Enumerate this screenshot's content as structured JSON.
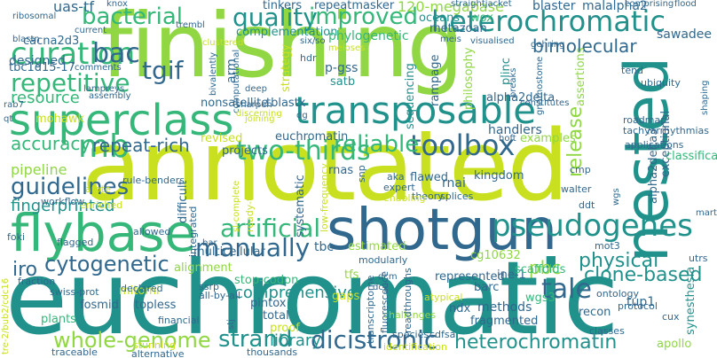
{
  "palette": {
    "yellow": "#c8e020",
    "lime": "#90d743",
    "green": "#35b779",
    "teal": "#21918c",
    "blue": "#31688e",
    "indigo": "#443983",
    "purple": "#440154"
  },
  "words": [
    {
      "text": "euchromatic",
      "color": "#21918c"
    },
    {
      "text": "annotated",
      "color": "#c8e020"
    },
    {
      "text": "finishing",
      "color": "#90d743"
    },
    {
      "text": "superclass",
      "color": "#35b779"
    },
    {
      "text": "shotgun",
      "color": "#31688e"
    },
    {
      "text": "flybase",
      "color": "#35b779"
    },
    {
      "text": "nested",
      "color": "#21918c"
    },
    {
      "text": "transposable",
      "color": "#21918c"
    },
    {
      "text": "heterochromatic",
      "color": "#21918c"
    },
    {
      "text": "pseudogenes",
      "color": "#21918c"
    },
    {
      "text": "curation",
      "color": "#35b779"
    },
    {
      "text": "toolbox",
      "color": "#31688e"
    },
    {
      "text": "artificial",
      "color": "#35b779"
    },
    {
      "text": "two-thirds",
      "color": "#35b779"
    },
    {
      "text": "guidelines",
      "color": "#31688e"
    },
    {
      "text": "repetitive",
      "color": "#35b779"
    },
    {
      "text": "bacterial",
      "color": "#35b779"
    },
    {
      "text": "quality",
      "color": "#21918c"
    },
    {
      "text": "improved",
      "color": "#35b779"
    },
    {
      "text": "bac",
      "color": "#31688e"
    },
    {
      "text": "mb",
      "color": "#35b779"
    },
    {
      "text": "tgif",
      "color": "#31688e"
    },
    {
      "text": "reliable",
      "color": "#35b779"
    },
    {
      "text": "manually",
      "color": "#31688e"
    },
    {
      "text": "cytogenetic",
      "color": "#31688e"
    },
    {
      "text": "tale",
      "color": "#31688e"
    },
    {
      "text": "dicistronic",
      "color": "#31688e"
    },
    {
      "text": "heterochromatin",
      "color": "#21918c"
    },
    {
      "text": "strand",
      "color": "#21918c"
    },
    {
      "text": "whole-genome",
      "color": "#90d743"
    },
    {
      "text": "physical",
      "color": "#21918c"
    },
    {
      "text": "clone-based",
      "color": "#21918c"
    },
    {
      "text": "bimolecular",
      "color": "#31688e"
    },
    {
      "text": "repeat-rich",
      "color": "#31688e"
    },
    {
      "text": "accuracy",
      "color": "#35b779"
    },
    {
      "text": "fingerprinted",
      "color": "#21918c"
    },
    {
      "text": "comprehensive",
      "color": "#21918c"
    },
    {
      "text": "library",
      "color": "#21918c"
    },
    {
      "text": "iro",
      "color": "#31688e"
    },
    {
      "text": "pbc",
      "color": "#90d743"
    },
    {
      "text": "release",
      "color": "#90d743"
    },
    {
      "text": "resource",
      "color": "#35b779"
    },
    {
      "text": "pipeline",
      "color": "#90d743"
    },
    {
      "text": "120-megabase",
      "color": "#90d743"
    },
    {
      "text": "uas-tf",
      "color": "#31688e"
    },
    {
      "text": "oceans",
      "color": "#21918c"
    },
    {
      "text": "wox",
      "color": "#35b779"
    },
    {
      "text": "blaster",
      "color": "#31688e"
    },
    {
      "text": "malalpha2",
      "color": "#31688e"
    },
    {
      "text": "repeatmasker",
      "color": "#31688e"
    },
    {
      "text": "tinkers",
      "color": "#31688e"
    },
    {
      "text": "complementation",
      "color": "#21918c"
    },
    {
      "text": "phylogenetic",
      "color": "#35b779"
    },
    {
      "text": "metazoan",
      "color": "#31688e"
    },
    {
      "text": "designed",
      "color": "#31688e"
    },
    {
      "text": "cacna2d3",
      "color": "#31688e"
    },
    {
      "text": "tbc1d15-17",
      "color": "#31688e"
    },
    {
      "text": "alpha2delta",
      "color": "#31688e"
    },
    {
      "text": "p-gss",
      "color": "#31688e"
    },
    {
      "text": "satb",
      "color": "#21918c"
    },
    {
      "text": "euchromatin",
      "color": "#31688e"
    },
    {
      "text": "handlers",
      "color": "#31688e"
    },
    {
      "text": "nonsatellite",
      "color": "#31688e"
    },
    {
      "text": "tblastx",
      "color": "#31688e"
    },
    {
      "text": "mohawk",
      "color": "#c8e020"
    },
    {
      "text": "revised",
      "color": "#c8e020"
    },
    {
      "text": "projects",
      "color": "#31688e"
    },
    {
      "text": "rnas",
      "color": "#31688e"
    },
    {
      "text": "rnai",
      "color": "#31688e"
    },
    {
      "text": "flawed",
      "color": "#31688e"
    },
    {
      "text": "kingdom",
      "color": "#31688e"
    },
    {
      "text": "tbc",
      "color": "#31688e"
    },
    {
      "text": "estimated",
      "color": "#90d743"
    },
    {
      "text": "multicellular",
      "color": "#31688e"
    },
    {
      "text": "cg10632",
      "color": "#90d743"
    },
    {
      "text": "alignment",
      "color": "#90d743"
    },
    {
      "text": "tfs",
      "color": "#90d743"
    },
    {
      "text": "represented",
      "color": "#31688e"
    },
    {
      "text": "ine-1",
      "color": "#31688e"
    },
    {
      "text": "scaffolds",
      "color": "#35b779"
    },
    {
      "text": "barc",
      "color": "#31688e"
    },
    {
      "text": "fosmid",
      "color": "#31688e"
    },
    {
      "text": "mitomi",
      "color": "#c8e020"
    },
    {
      "text": "topless",
      "color": "#31688e"
    },
    {
      "text": "plants",
      "color": "#35b779"
    },
    {
      "text": "pintox",
      "color": "#31688e"
    },
    {
      "text": "total",
      "color": "#31688e"
    },
    {
      "text": "gaps",
      "color": "#c8e020"
    },
    {
      "text": "proof",
      "color": "#c8e020"
    },
    {
      "text": "stop-codon",
      "color": "#35b779"
    },
    {
      "text": "ndx",
      "color": "#31688e"
    },
    {
      "text": "methods",
      "color": "#31688e"
    },
    {
      "text": "fragmented",
      "color": "#31688e"
    },
    {
      "text": "wgs3",
      "color": "#35b779"
    },
    {
      "text": "recon",
      "color": "#31688e"
    },
    {
      "text": "tup1",
      "color": "#31688e"
    },
    {
      "text": "apollo",
      "color": "#90d743"
    },
    {
      "text": "synesthesia",
      "color": "#21918c"
    },
    {
      "text": "alpha2delta3",
      "color": "#31688e"
    },
    {
      "text": "exceptional",
      "color": "#31688e"
    },
    {
      "text": "classification",
      "color": "#35b779"
    },
    {
      "text": "sawadee",
      "color": "#31688e"
    },
    {
      "text": "bimolecular",
      "color": "#31688e"
    },
    {
      "text": "difficult",
      "color": "#31688e"
    },
    {
      "text": "systematic",
      "color": "#31688e"
    },
    {
      "text": "sequencing",
      "color": "#21918c"
    },
    {
      "text": "rampage",
      "color": "#31688e"
    },
    {
      "text": "philosophy",
      "color": "#90d743"
    },
    {
      "text": "plinc",
      "color": "#21918c"
    },
    {
      "text": "assertions",
      "color": "#90d743"
    },
    {
      "text": "strategy",
      "color": "#c8e020"
    },
    {
      "text": "examples",
      "color": "#90d743"
    },
    {
      "text": "arm",
      "color": "#31688e"
    },
    {
      "text": "hdr",
      "color": "#31688e"
    },
    {
      "text": "ubiquity",
      "color": "#31688e"
    },
    {
      "text": "tend",
      "color": "#31688e"
    },
    {
      "text": "roadmap",
      "color": "#31688e"
    },
    {
      "text": "tachyarrhythmias",
      "color": "#31688e"
    },
    {
      "text": "applications",
      "color": "#31688e"
    },
    {
      "text": "walter",
      "color": "#31688e"
    },
    {
      "text": "cmp",
      "color": "#31688e"
    },
    {
      "text": "ddt",
      "color": "#31688e"
    },
    {
      "text": "theory",
      "color": "#31688e"
    },
    {
      "text": "expert",
      "color": "#31688e"
    },
    {
      "text": "enabling",
      "color": "#c8e020"
    },
    {
      "text": "aka",
      "color": "#31688e"
    },
    {
      "text": "splices",
      "color": "#31688e"
    },
    {
      "text": "snp",
      "color": "#31688e"
    },
    {
      "text": "low-frequency",
      "color": "#c8e020"
    },
    {
      "text": "ready-to-use",
      "color": "#c8e020"
    },
    {
      "text": "integrated",
      "color": "#31688e"
    },
    {
      "text": "allowed",
      "color": "#31688e"
    },
    {
      "text": "modularly",
      "color": "#31688e"
    },
    {
      "text": "foki",
      "color": "#31688e"
    },
    {
      "text": "flagged",
      "color": "#31688e"
    },
    {
      "text": "enriched",
      "color": "#c8e020"
    },
    {
      "text": "workflow",
      "color": "#31688e"
    },
    {
      "text": "arote",
      "color": "#c8e020"
    },
    {
      "text": "rule-benders",
      "color": "#31688e"
    },
    {
      "text": "declared",
      "color": "#31688e"
    },
    {
      "text": "fraction",
      "color": "#31688e"
    },
    {
      "text": "swiss-prot",
      "color": "#31688e"
    },
    {
      "text": "ssrp",
      "color": "#31688e"
    },
    {
      "text": "all-by-all",
      "color": "#31688e"
    },
    {
      "text": "challenges",
      "color": "#90d743"
    },
    {
      "text": "financial",
      "color": "#31688e"
    },
    {
      "text": "species",
      "color": "#31688e"
    },
    {
      "text": "transcriptome",
      "color": "#31688e"
    },
    {
      "text": "atypical",
      "color": "#c8e020"
    },
    {
      "text": "ontology",
      "color": "#31688e"
    },
    {
      "text": "protocol",
      "color": "#31688e"
    },
    {
      "text": "classes",
      "color": "#31688e"
    },
    {
      "text": "cux",
      "color": "#31688e"
    },
    {
      "text": "utrs",
      "color": "#31688e"
    },
    {
      "text": "traceable",
      "color": "#31688e"
    },
    {
      "text": "stunning",
      "color": "#c8e020"
    },
    {
      "text": "alternative",
      "color": "#31688e"
    },
    {
      "text": "thousands",
      "color": "#31688e"
    },
    {
      "text": "identification",
      "color": "#c8e020"
    },
    {
      "text": "readthroughs",
      "color": "#31688e"
    },
    {
      "text": "fluorescence",
      "color": "#31688e"
    },
    {
      "text": "cdfsa",
      "color": "#31688e"
    },
    {
      "text": "mot3",
      "color": "#31688e"
    },
    {
      "text": "ribosomal",
      "color": "#31688e"
    },
    {
      "text": "blastn",
      "color": "#31688e"
    },
    {
      "text": "current",
      "color": "#31688e"
    },
    {
      "text": "knox",
      "color": "#31688e"
    },
    {
      "text": "straightjacket",
      "color": "#31688e"
    },
    {
      "text": "comprising",
      "color": "#31688e"
    },
    {
      "text": "flood",
      "color": "#31688e"
    },
    {
      "text": "lampreys",
      "color": "#31688e"
    },
    {
      "text": "assembly",
      "color": "#31688e"
    },
    {
      "text": "comments",
      "color": "#31688e"
    },
    {
      "text": "trembl",
      "color": "#31688e"
    },
    {
      "text": "clustered",
      "color": "#c8e020"
    },
    {
      "text": "gehring",
      "color": "#31688e"
    },
    {
      "text": "meis",
      "color": "#31688e"
    },
    {
      "text": "visualised",
      "color": "#31688e"
    },
    {
      "text": "joining",
      "color": "#c8e020"
    },
    {
      "text": "constitutes",
      "color": "#31688e"
    },
    {
      "text": "breaks",
      "color": "#31688e"
    },
    {
      "text": "gnathostome",
      "color": "#31688e"
    },
    {
      "text": "six/so",
      "color": "#31688e"
    },
    {
      "text": "computational",
      "color": "#31688e"
    },
    {
      "text": "bivalently",
      "color": "#31688e"
    },
    {
      "text": "rab7",
      "color": "#31688e"
    },
    {
      "text": "qt",
      "color": "#31688e"
    },
    {
      "text": "dg",
      "color": "#31688e"
    },
    {
      "text": "meioses",
      "color": "#c8e020"
    },
    {
      "text": "dc2",
      "color": "#31688e"
    },
    {
      "text": "hoft",
      "color": "#31688e"
    },
    {
      "text": "bar",
      "color": "#31688e"
    },
    {
      "text": "deep",
      "color": "#31688e"
    },
    {
      "text": "sharpen",
      "color": "#31688e"
    },
    {
      "text": "shaping",
      "color": "#31688e"
    },
    {
      "text": "discerning",
      "color": "#c8e020"
    },
    {
      "text": "tre-2/bub2/cdc16",
      "color": "#c8e020"
    },
    {
      "text": "dcm",
      "color": "#31688e"
    },
    {
      "text": "stj",
      "color": "#31688e"
    },
    {
      "text": "sl-complete",
      "color": "#c8e020"
    },
    {
      "text": "wgs",
      "color": "#31688e"
    },
    {
      "text": "mart",
      "color": "#31688e"
    }
  ]
}
